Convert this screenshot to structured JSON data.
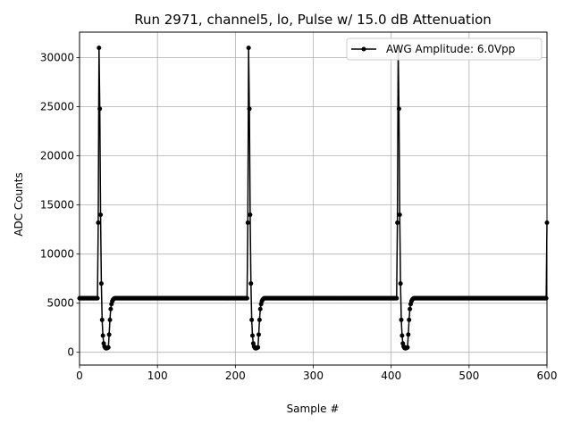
{
  "chart_data": {
    "type": "line",
    "title": "Run 2971, channel5, lo, Pulse w/ 15.0 dB Attenuation",
    "xlabel": "Sample #",
    "ylabel": "ADC Counts",
    "xlim": [
      0,
      600
    ],
    "ylim": [
      -1300,
      32600
    ],
    "xticks": [
      0,
      100,
      200,
      300,
      400,
      500,
      600
    ],
    "yticks": [
      0,
      5000,
      10000,
      15000,
      20000,
      25000,
      30000
    ],
    "xtick_labels": [
      "0",
      "100",
      "200",
      "300",
      "400",
      "500",
      "600"
    ],
    "ytick_labels": [
      "0",
      "5000",
      "10000",
      "15000",
      "20000",
      "25000",
      "30000"
    ],
    "grid": true,
    "legend_position": "upper-right",
    "baseline": 5500,
    "pulse_period": 192,
    "pulse_template": [
      [
        0,
        13200
      ],
      [
        1,
        31000
      ],
      [
        2,
        24800
      ],
      [
        3,
        14000
      ],
      [
        4,
        7000
      ],
      [
        5,
        3300
      ],
      [
        6,
        1700
      ],
      [
        7,
        900
      ],
      [
        8,
        600
      ],
      [
        9,
        450
      ],
      [
        10,
        400
      ],
      [
        11,
        420
      ],
      [
        12,
        450
      ],
      [
        13,
        500
      ],
      [
        14,
        1800
      ],
      [
        15,
        3300
      ],
      [
        16,
        4400
      ],
      [
        17,
        4900
      ],
      [
        18,
        5200
      ],
      [
        19,
        5350
      ],
      [
        20,
        5450
      ]
    ],
    "series": [
      {
        "name": "AWG Amplitude: 6.0Vpp",
        "color": "#000000",
        "marker": "circle",
        "pulse_starts": [
          24,
          216,
          408,
          600
        ]
      }
    ]
  }
}
